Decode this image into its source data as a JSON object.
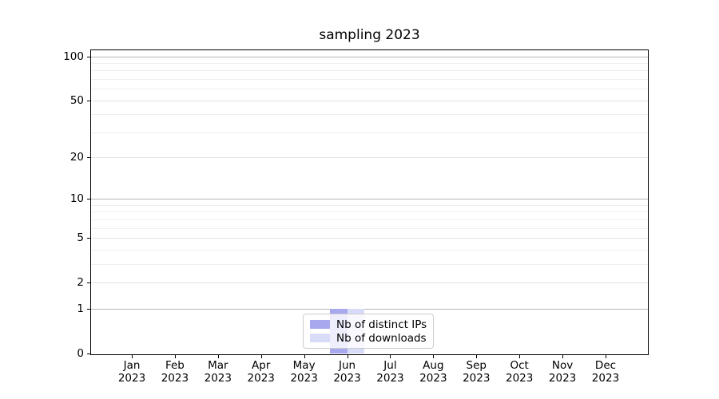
{
  "chart_data": {
    "type": "bar",
    "title": "sampling 2023",
    "xlabel": "",
    "ylabel": "",
    "categories": [
      "Jan 2023",
      "Feb 2023",
      "Mar 2023",
      "Apr 2023",
      "May 2023",
      "Jun 2023",
      "Jul 2023",
      "Aug 2023",
      "Sep 2023",
      "Oct 2023",
      "Nov 2023",
      "Dec 2023"
    ],
    "series": [
      {
        "name": "Nb of distinct IPs",
        "color": "#a8a8ee",
        "values": [
          0,
          0,
          0,
          0,
          0,
          1,
          0,
          0,
          0,
          0,
          0,
          0
        ]
      },
      {
        "name": "Nb of downloads",
        "color": "#d9dcf8",
        "values": [
          0,
          0,
          0,
          0,
          0,
          1,
          0,
          0,
          0,
          0,
          0,
          0
        ]
      }
    ],
    "yscale": "log1p",
    "ylim": [
      0,
      112
    ],
    "y_ticks_major": [
      0,
      1,
      2,
      5,
      10,
      20,
      50,
      100
    ],
    "y_ticks_emphasized": [
      1,
      10,
      100
    ],
    "y_ticks_minor": [
      3,
      4,
      6,
      7,
      8,
      9,
      30,
      40,
      60,
      70,
      80,
      90
    ],
    "grid": true,
    "legend": {
      "position": "lower center",
      "entries": [
        "Nb of distinct IPs",
        "Nb of downloads"
      ]
    }
  },
  "style": {
    "bar1_color": "#a8a8ee",
    "bar2_color": "#d9dcf8",
    "grid_strong": "#b7b7b7",
    "grid_weak": "#e2e2e2",
    "grid_minor": "#efefef",
    "axis_color": "#000000",
    "legend_border": "#cccccc"
  }
}
